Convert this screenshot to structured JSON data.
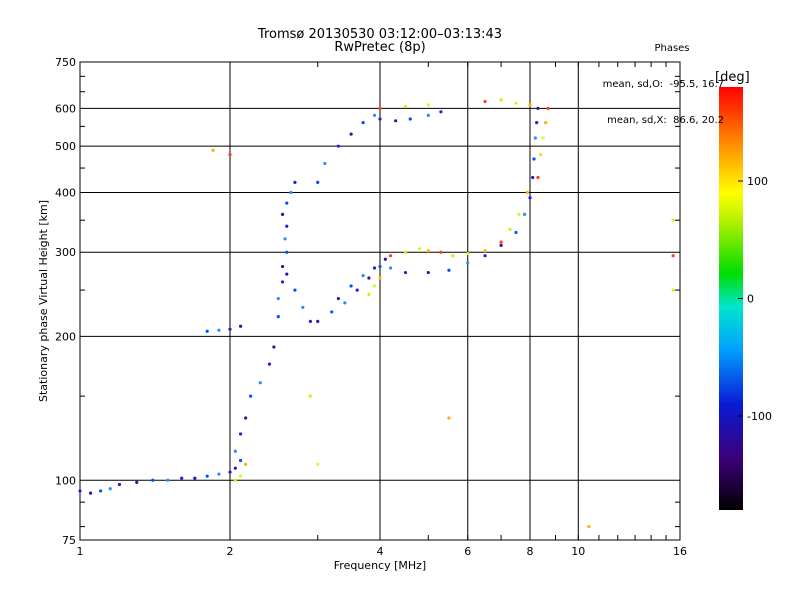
{
  "chart_data": {
    "type": "scatter",
    "title": "Tromsø 20130530 03:12:00–03:13:43",
    "subtitle": "RwPretec (8p)",
    "xlabel": "Frequency [MHz]",
    "ylabel": "Stationary phase Virtual Height [km]",
    "x_scale": "log",
    "y_scale": "log",
    "xlim": [
      1,
      16
    ],
    "ylim": [
      75,
      750
    ],
    "x_ticks": [
      1,
      2,
      4,
      6,
      8,
      10,
      16
    ],
    "y_ticks": [
      75,
      100,
      200,
      300,
      400,
      500,
      600,
      750
    ],
    "grid": true,
    "colorbar": {
      "label": "[deg]",
      "range": [
        -180,
        180
      ],
      "ticks": [
        100,
        0,
        -100
      ]
    },
    "phase_stats": {
      "header": "Phases",
      "line_O": "mean, sd,O:  -95.5, 16.7",
      "line_X": "mean, sd,X:  86.6, 20.2"
    },
    "series": [
      {
        "points": [
          [
            1.0,
            95
          ],
          [
            1.05,
            94
          ],
          [
            1.1,
            95
          ],
          [
            1.15,
            96
          ],
          [
            1.2,
            98
          ],
          [
            1.3,
            99
          ],
          [
            1.4,
            100
          ],
          [
            1.5,
            100
          ],
          [
            1.6,
            101
          ],
          [
            1.7,
            101
          ],
          [
            1.8,
            102
          ],
          [
            1.9,
            103
          ],
          [
            2.0,
            104
          ],
          [
            2.05,
            106
          ],
          [
            2.1,
            110
          ],
          [
            2.05,
            115
          ],
          [
            2.1,
            125
          ],
          [
            2.15,
            135
          ],
          [
            2.2,
            150
          ],
          [
            2.3,
            160
          ],
          [
            2.4,
            175
          ],
          [
            2.45,
            190
          ],
          [
            1.8,
            205
          ],
          [
            1.9,
            206
          ],
          [
            2.0,
            207
          ],
          [
            2.1,
            210
          ],
          [
            2.5,
            220
          ],
          [
            2.5,
            240
          ],
          [
            2.55,
            260
          ],
          [
            2.55,
            280
          ],
          [
            2.6,
            300
          ],
          [
            2.58,
            320
          ],
          [
            2.6,
            340
          ],
          [
            2.55,
            360
          ],
          [
            2.6,
            380
          ],
          [
            2.65,
            400
          ],
          [
            2.7,
            420
          ],
          [
            2.6,
            270
          ],
          [
            2.7,
            250
          ],
          [
            2.8,
            230
          ],
          [
            2.9,
            215
          ],
          [
            3.0,
            215
          ],
          [
            3.2,
            225
          ],
          [
            3.4,
            235
          ],
          [
            3.6,
            250
          ],
          [
            3.8,
            265
          ],
          [
            4.0,
            280
          ],
          [
            4.2,
            278
          ],
          [
            4.5,
            272
          ],
          [
            5.0,
            272
          ],
          [
            5.5,
            275
          ],
          [
            6.0,
            285
          ],
          [
            6.5,
            295
          ],
          [
            7.0,
            310
          ],
          [
            7.5,
            330
          ],
          [
            7.8,
            360
          ],
          [
            8.0,
            390
          ],
          [
            8.1,
            430
          ],
          [
            8.15,
            470
          ],
          [
            8.2,
            520
          ],
          [
            8.25,
            560
          ],
          [
            8.3,
            600
          ],
          [
            3.0,
            420
          ],
          [
            3.1,
            460
          ],
          [
            3.3,
            500
          ],
          [
            3.5,
            530
          ],
          [
            3.7,
            560
          ],
          [
            3.9,
            580
          ],
          [
            4.0,
            570
          ],
          [
            4.3,
            565
          ],
          [
            4.6,
            570
          ],
          [
            5.0,
            580
          ],
          [
            5.3,
            590
          ],
          [
            3.3,
            240
          ],
          [
            3.5,
            255
          ],
          [
            3.7,
            268
          ],
          [
            3.9,
            278
          ],
          [
            4.1,
            290
          ]
        ]
      },
      {
        "points": [
          [
            2.05,
            100
          ],
          [
            2.1,
            102
          ],
          [
            2.15,
            108
          ],
          [
            4.2,
            295
          ],
          [
            4.5,
            300
          ],
          [
            4.8,
            305
          ],
          [
            5.0,
            302
          ],
          [
            5.3,
            300
          ],
          [
            5.6,
            295
          ],
          [
            6.0,
            298
          ],
          [
            6.5,
            302
          ],
          [
            7.0,
            315
          ],
          [
            7.3,
            335
          ],
          [
            7.6,
            360
          ],
          [
            7.9,
            400
          ],
          [
            8.3,
            430
          ],
          [
            8.4,
            480
          ],
          [
            8.5,
            520
          ],
          [
            8.6,
            560
          ],
          [
            8.7,
            600
          ],
          [
            3.8,
            245
          ],
          [
            3.9,
            255
          ],
          [
            4.0,
            265
          ],
          [
            6.5,
            620
          ],
          [
            7.0,
            625
          ],
          [
            7.5,
            615
          ],
          [
            8.0,
            610
          ],
          [
            4.0,
            600
          ],
          [
            4.5,
            605
          ],
          [
            5.0,
            610
          ],
          [
            1.85,
            490
          ],
          [
            2.0,
            480
          ],
          [
            2.9,
            150
          ],
          [
            3.0,
            108
          ],
          [
            5.5,
            135
          ],
          [
            15.5,
            295
          ],
          [
            15.5,
            250
          ],
          [
            15.5,
            350
          ],
          [
            10.5,
            80
          ]
        ]
      }
    ]
  }
}
